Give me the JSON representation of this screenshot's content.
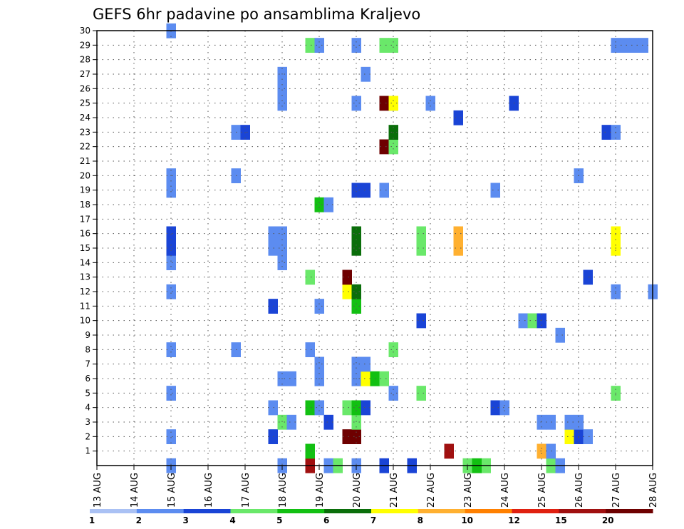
{
  "chart_data": {
    "type": "heatmap",
    "title": "GEFS 6hr padavine po ansamblima Kraljevo",
    "y_ticks": [
      1,
      2,
      3,
      4,
      5,
      6,
      7,
      8,
      9,
      10,
      11,
      12,
      13,
      14,
      15,
      16,
      17,
      18,
      19,
      20,
      21,
      22,
      23,
      24,
      25,
      26,
      27,
      28,
      29,
      30
    ],
    "x_ticks": [
      "13 AUG",
      "14 AUG",
      "15 AUG",
      "16 AUG",
      "17 AUG",
      "18 AUG",
      "19 AUG",
      "20 AUG",
      "21 AUG",
      "22 AUG",
      "23 AUG",
      "24 AUG",
      "25 AUG",
      "26 AUG",
      "27 AUG",
      "28 AUG"
    ],
    "x_range": [
      0,
      60
    ],
    "y_range": [
      0,
      30
    ],
    "grid": true,
    "legend_position": "bottom",
    "legend": {
      "labels": [
        "1",
        "2",
        "3",
        "4",
        "5",
        "6",
        "7",
        "8",
        "10",
        "12",
        "15",
        "20"
      ],
      "colors": [
        "#aac1f4",
        "#5c8cf0",
        "#1a44d6",
        "#6ae86a",
        "#12c012",
        "#0a6e0a",
        "#ffff00",
        "#ffb030",
        "#ff8000",
        "#e02010",
        "#a01010",
        "#6e0000"
      ]
    },
    "cells": [
      [
        8,
        0,
        1
      ],
      [
        20,
        0,
        1
      ],
      [
        25,
        0,
        1
      ],
      [
        26,
        0,
        3
      ],
      [
        28,
        0,
        1
      ],
      [
        34,
        0,
        2
      ],
      [
        40,
        0,
        3
      ],
      [
        42,
        0,
        3
      ],
      [
        41,
        0,
        4
      ],
      [
        49,
        0,
        3
      ],
      [
        50,
        0,
        1
      ],
      [
        31,
        0,
        2
      ],
      [
        23,
        0,
        10
      ],
      [
        23,
        1,
        4
      ],
      [
        38,
        1,
        10
      ],
      [
        48,
        1,
        7
      ],
      [
        49,
        1,
        1
      ],
      [
        8,
        2,
        1
      ],
      [
        19,
        2,
        2
      ],
      [
        27,
        2,
        11
      ],
      [
        28,
        2,
        11
      ],
      [
        51,
        2,
        6
      ],
      [
        52,
        2,
        2
      ],
      [
        53,
        2,
        1
      ],
      [
        20,
        3,
        3
      ],
      [
        21,
        3,
        1
      ],
      [
        25,
        3,
        2
      ],
      [
        28,
        3,
        3
      ],
      [
        48,
        3,
        1
      ],
      [
        49,
        3,
        1
      ],
      [
        51,
        3,
        1
      ],
      [
        52,
        3,
        1
      ],
      [
        19,
        4,
        1
      ],
      [
        23,
        4,
        4
      ],
      [
        24,
        4,
        1
      ],
      [
        27,
        4,
        3
      ],
      [
        28,
        4,
        4
      ],
      [
        29,
        4,
        2
      ],
      [
        43,
        4,
        2
      ],
      [
        44,
        4,
        1
      ],
      [
        8,
        5,
        1
      ],
      [
        32,
        5,
        1
      ],
      [
        35,
        5,
        3
      ],
      [
        56,
        5,
        3
      ],
      [
        20,
        6,
        1
      ],
      [
        21,
        6,
        1
      ],
      [
        24,
        6,
        1
      ],
      [
        28,
        6,
        1
      ],
      [
        29,
        6,
        6
      ],
      [
        30,
        6,
        4
      ],
      [
        31,
        6,
        3
      ],
      [
        24,
        7,
        1
      ],
      [
        28,
        7,
        1
      ],
      [
        29,
        7,
        1
      ],
      [
        8,
        8,
        1
      ],
      [
        15,
        8,
        1
      ],
      [
        23,
        8,
        1
      ],
      [
        32,
        8,
        3
      ],
      [
        50,
        9,
        1
      ],
      [
        35,
        10,
        2
      ],
      [
        46,
        10,
        1
      ],
      [
        47,
        10,
        3
      ],
      [
        48,
        10,
        2
      ],
      [
        19,
        11,
        2
      ],
      [
        24,
        11,
        1
      ],
      [
        28,
        11,
        4
      ],
      [
        8,
        12,
        1
      ],
      [
        27,
        12,
        6
      ],
      [
        28,
        12,
        5
      ],
      [
        56,
        12,
        1
      ],
      [
        60,
        12,
        1
      ],
      [
        23,
        13,
        3
      ],
      [
        27,
        13,
        11
      ],
      [
        53,
        13,
        2
      ],
      [
        8,
        14,
        1
      ],
      [
        20,
        14,
        1
      ],
      [
        8,
        15,
        2
      ],
      [
        19,
        15,
        1
      ],
      [
        20,
        15,
        1
      ],
      [
        28,
        15,
        5
      ],
      [
        35,
        15,
        3
      ],
      [
        39,
        15,
        7
      ],
      [
        56,
        15,
        6
      ],
      [
        8,
        16,
        2
      ],
      [
        19,
        16,
        1
      ],
      [
        20,
        16,
        1
      ],
      [
        28,
        16,
        5
      ],
      [
        35,
        16,
        3
      ],
      [
        39,
        16,
        7
      ],
      [
        56,
        16,
        6
      ],
      [
        24,
        18,
        4
      ],
      [
        25,
        18,
        1
      ],
      [
        8,
        19,
        1
      ],
      [
        28,
        19,
        2
      ],
      [
        29,
        19,
        2
      ],
      [
        31,
        19,
        1
      ],
      [
        43,
        19,
        1
      ],
      [
        8,
        20,
        1
      ],
      [
        15,
        20,
        1
      ],
      [
        52,
        20,
        1
      ],
      [
        31,
        22,
        11
      ],
      [
        32,
        22,
        3
      ],
      [
        15,
        23,
        1
      ],
      [
        16,
        23,
        2
      ],
      [
        32,
        23,
        5
      ],
      [
        55,
        23,
        2
      ],
      [
        56,
        23,
        1
      ],
      [
        39,
        24,
        2
      ],
      [
        32,
        25,
        1
      ],
      [
        20,
        25,
        1
      ],
      [
        28,
        25,
        1
      ],
      [
        31,
        25,
        11
      ],
      [
        32,
        25,
        6
      ],
      [
        36,
        25,
        1
      ],
      [
        45,
        25,
        2
      ],
      [
        20,
        26,
        1
      ],
      [
        20,
        27,
        1
      ],
      [
        29,
        27,
        1
      ],
      [
        23,
        29,
        3
      ],
      [
        24,
        29,
        1
      ],
      [
        28,
        29,
        1
      ],
      [
        31,
        29,
        3
      ],
      [
        32,
        29,
        3
      ],
      [
        56,
        29,
        1
      ],
      [
        57,
        29,
        1
      ],
      [
        58,
        29,
        1
      ],
      [
        59,
        29,
        1
      ],
      [
        8,
        30,
        1
      ]
    ]
  }
}
